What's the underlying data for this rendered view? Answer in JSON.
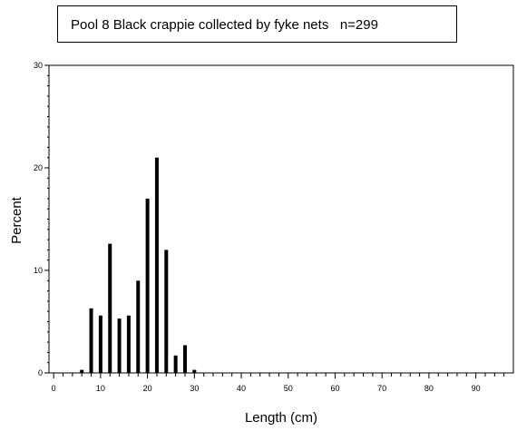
{
  "chart_data": {
    "type": "bar",
    "title": "Pool 8 Black crappie collected by fyke nets   n=299",
    "xlabel": "Length (cm)",
    "ylabel": "Percent",
    "xlim": [
      -1,
      98
    ],
    "ylim": [
      0,
      30
    ],
    "x_ticks_labeled": [
      0,
      10,
      20,
      30,
      40,
      50,
      60,
      70,
      80,
      90
    ],
    "y_ticks_labeled": [
      0,
      10,
      20,
      30
    ],
    "x": [
      6,
      8,
      10,
      12,
      14,
      16,
      18,
      20,
      22,
      24,
      26,
      28,
      30
    ],
    "values": [
      0.3,
      6.3,
      5.6,
      12.6,
      5.3,
      5.6,
      9.0,
      17.0,
      21.0,
      12.0,
      1.7,
      2.7,
      0.3
    ],
    "grid": false,
    "bar_color": "#000000"
  }
}
